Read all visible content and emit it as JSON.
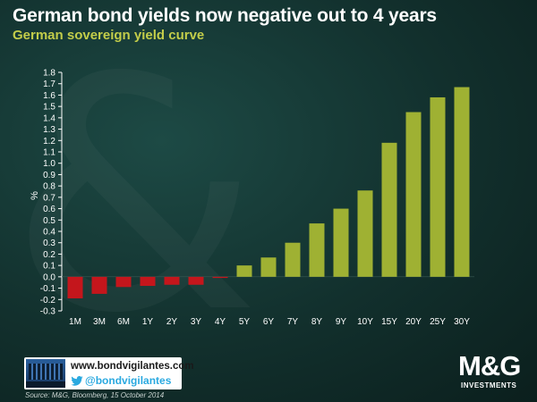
{
  "header": {
    "title": "German bond yields now negative out to 4 years",
    "subtitle": "German sovereign yield curve"
  },
  "chart_data": {
    "type": "bar",
    "categories": [
      "1M",
      "3M",
      "6M",
      "1Y",
      "2Y",
      "3Y",
      "4Y",
      "5Y",
      "6Y",
      "7Y",
      "8Y",
      "9Y",
      "10Y",
      "15Y",
      "20Y",
      "25Y",
      "30Y"
    ],
    "values": [
      -0.19,
      -0.15,
      -0.09,
      -0.08,
      -0.07,
      -0.07,
      -0.01,
      0.1,
      0.17,
      0.3,
      0.47,
      0.6,
      0.76,
      1.18,
      1.45,
      1.58,
      1.67
    ],
    "ylabel": "%",
    "ylim": [
      -0.3,
      1.8
    ],
    "yticks": [
      "1.8",
      "1.7",
      "1.6",
      "1.5",
      "1.4",
      "1.3",
      "1.2",
      "1.1",
      "1.0",
      "0.9",
      "0.8",
      "0.7",
      "0.6",
      "0.5",
      "0.4",
      "0.3",
      "0.2",
      "0.1",
      "0.0",
      "-0.1",
      "-0.2",
      "-0.3"
    ],
    "grid": false,
    "colors": {
      "positive": "#9fb133",
      "negative": "#c4161c"
    }
  },
  "footer": {
    "site": "www.bondvigilantes.com",
    "twitter": "@bondvigilantes",
    "source": "Source: M&G, Bloomberg, 15 October 2014",
    "brand": "M&G",
    "brand_sub": "INVESTMENTS"
  }
}
